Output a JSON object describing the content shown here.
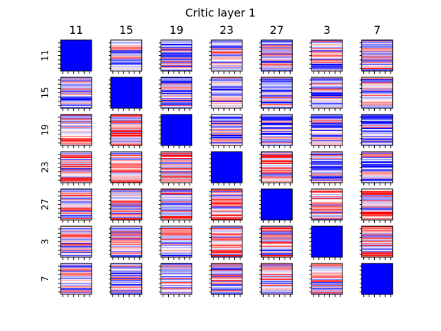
{
  "chart_data": {
    "type": "heatmap",
    "title": "Critic layer 1",
    "labels": [
      "11",
      "15",
      "19",
      "23",
      "27",
      "3",
      "7"
    ],
    "row_labels": [
      "11",
      "15",
      "19",
      "23",
      "27",
      "3",
      "7"
    ],
    "column_labels": [
      "11",
      "15",
      "19",
      "23",
      "27",
      "3",
      "7"
    ],
    "diagonal_value": -1.0,
    "colormap": "bwr",
    "colors": {
      "negative": "#0000ff",
      "neutral": "#ffffff",
      "positive": "#ff0000",
      "frame": "#000000"
    }
  }
}
